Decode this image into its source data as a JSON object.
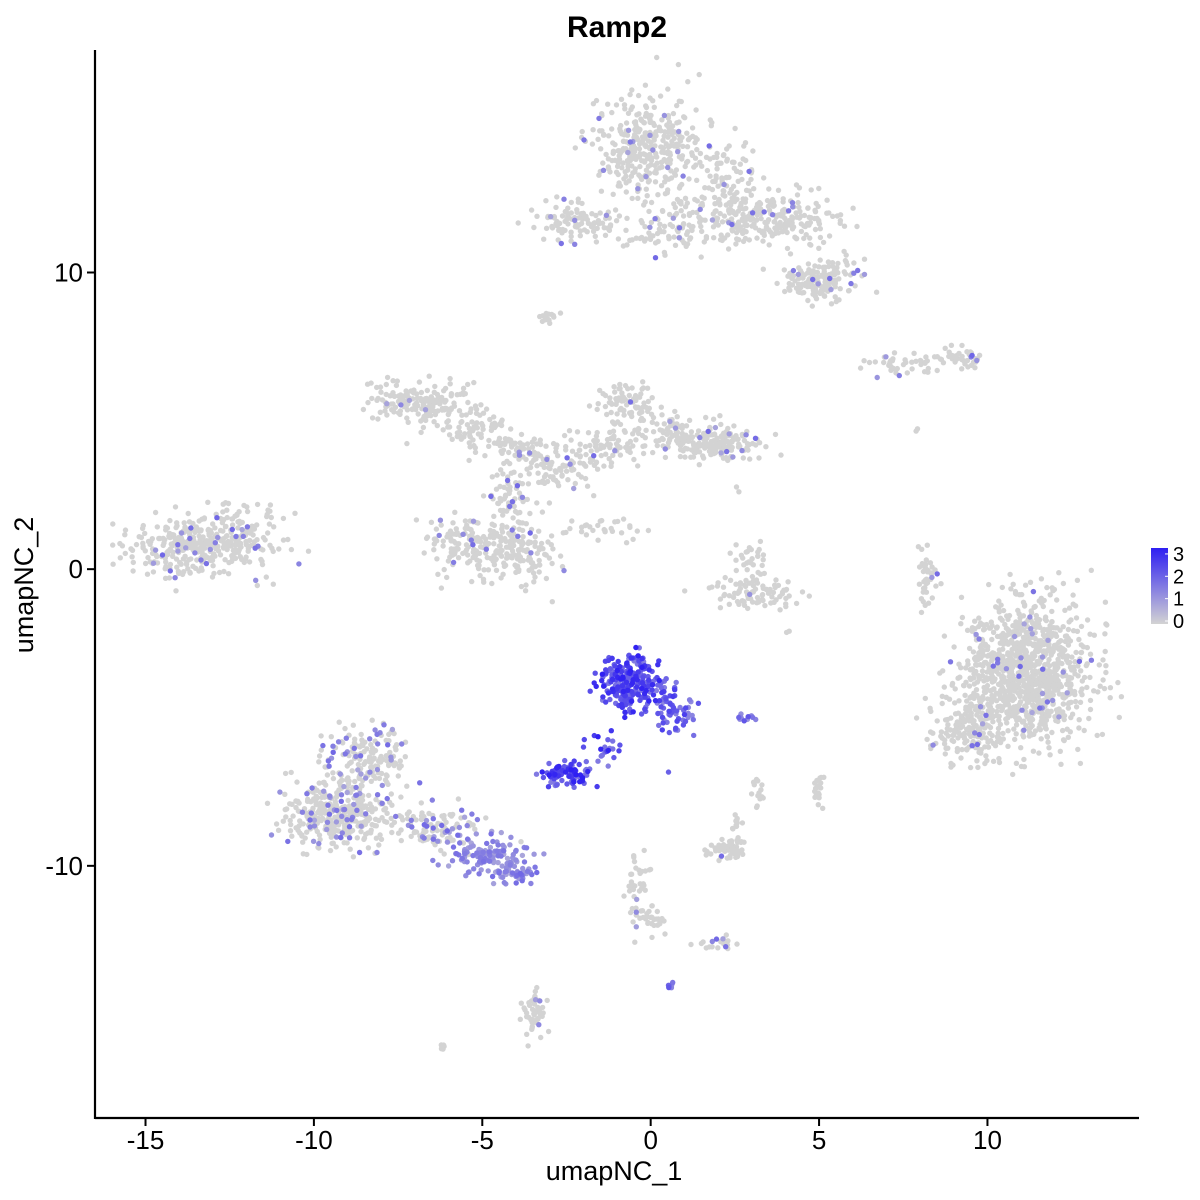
{
  "chart_data": {
    "type": "scatter",
    "title": "Ramp2",
    "xlabel": "umapNC_1",
    "ylabel": "umapNC_2",
    "xlim": [
      -16.5,
      14.5
    ],
    "ylim": [
      -18.5,
      17.5
    ],
    "x_ticks": [
      -15,
      -10,
      -5,
      0,
      5,
      10
    ],
    "x_tick_labels": [
      "-15",
      "-10",
      "-5",
      "0",
      "5",
      "10"
    ],
    "y_ticks": [
      -10,
      0,
      10
    ],
    "y_tick_labels": [
      "-10",
      "0",
      "10"
    ],
    "grid": false,
    "legend": {
      "position": "right",
      "type": "colorbar",
      "values": [
        0,
        1,
        2,
        3
      ],
      "labels": [
        "0",
        "1",
        "2",
        "3"
      ],
      "low_color": "#d3d3d3",
      "high_color": "#2e1ff2"
    },
    "point_color_low": "#d3d3d3",
    "point_color_high": "#2e1ff2",
    "clusters": [
      {
        "cx": -13.5,
        "cy": 0.8,
        "sx": 1.2,
        "sy": 0.6,
        "n": 340,
        "expr": 0.05
      },
      {
        "cx": -12.2,
        "cy": 1.6,
        "sx": 0.8,
        "sy": 0.5,
        "n": 60,
        "expr": 0.05
      },
      {
        "cx": -6.8,
        "cy": 5.6,
        "sx": 0.9,
        "sy": 0.4,
        "n": 180,
        "expr": 0.03
      },
      {
        "cx": -5.2,
        "cy": 4.6,
        "sx": 0.6,
        "sy": 0.4,
        "n": 70,
        "expr": 0.03
      },
      {
        "cx": -4.0,
        "cy": 4.0,
        "sx": 0.6,
        "sy": 0.3,
        "n": 60,
        "expr": 0.05
      },
      {
        "cx": -5.4,
        "cy": 0.8,
        "sx": 0.7,
        "sy": 0.6,
        "n": 140,
        "expr": 0.05
      },
      {
        "cx": -3.8,
        "cy": 0.6,
        "sx": 0.6,
        "sy": 0.6,
        "n": 120,
        "expr": 0.06
      },
      {
        "cx": -4.2,
        "cy": 2.3,
        "sx": 0.4,
        "sy": 0.7,
        "n": 70,
        "expr": 0.04
      },
      {
        "cx": -2.8,
        "cy": 3.3,
        "sx": 0.7,
        "sy": 0.4,
        "n": 70,
        "expr": 0.03
      },
      {
        "cx": -1.5,
        "cy": 4.1,
        "sx": 0.7,
        "sy": 0.4,
        "n": 80,
        "expr": 0.03
      },
      {
        "cx": -0.8,
        "cy": 5.6,
        "sx": 0.5,
        "sy": 0.4,
        "n": 80,
        "expr": 0.03
      },
      {
        "cx": 0.5,
        "cy": 4.6,
        "sx": 0.6,
        "sy": 0.4,
        "n": 60,
        "expr": 0.03
      },
      {
        "cx": 2.0,
        "cy": 4.3,
        "sx": 0.8,
        "sy": 0.4,
        "n": 180,
        "expr": 0.05
      },
      {
        "cx": -1.5,
        "cy": 1.3,
        "sx": 0.8,
        "sy": 0.25,
        "n": 30,
        "expr": 0.0
      },
      {
        "cx": -0.1,
        "cy": 14.2,
        "sx": 0.9,
        "sy": 1.0,
        "n": 360,
        "expr": 0.05
      },
      {
        "cx": 2.3,
        "cy": 13.1,
        "sx": 0.6,
        "sy": 0.8,
        "n": 100,
        "expr": 0.05
      },
      {
        "cx": 3.5,
        "cy": 11.8,
        "sx": 1.2,
        "sy": 0.5,
        "n": 230,
        "expr": 0.05
      },
      {
        "cx": 5.0,
        "cy": 9.8,
        "sx": 0.7,
        "sy": 0.4,
        "n": 170,
        "expr": 0.05
      },
      {
        "cx": 0.9,
        "cy": 11.5,
        "sx": 0.6,
        "sy": 0.5,
        "n": 80,
        "expr": 0.04
      },
      {
        "cx": -2.3,
        "cy": 11.6,
        "sx": 0.8,
        "sy": 0.4,
        "n": 100,
        "expr": 0.03
      },
      {
        "cx": -0.3,
        "cy": 11.1,
        "sx": 0.4,
        "sy": 0.15,
        "n": 15,
        "expr": 0.0
      },
      {
        "cx": -3.1,
        "cy": 8.5,
        "sx": 0.25,
        "sy": 0.1,
        "n": 15,
        "expr": 0.0
      },
      {
        "cx": 7.6,
        "cy": 6.9,
        "sx": 0.6,
        "sy": 0.2,
        "n": 40,
        "expr": 0.05
      },
      {
        "cx": 9.2,
        "cy": 7.1,
        "sx": 0.5,
        "sy": 0.2,
        "n": 45,
        "expr": 0.05
      },
      {
        "cx": 11.2,
        "cy": -3.5,
        "sx": 1.1,
        "sy": 1.4,
        "n": 1050,
        "expr": 0.03
      },
      {
        "cx": 9.4,
        "cy": -5.4,
        "sx": 0.7,
        "sy": 0.7,
        "n": 170,
        "expr": 0.03
      },
      {
        "cx": 8.2,
        "cy": -0.2,
        "sx": 0.15,
        "sy": 0.6,
        "n": 40,
        "expr": 0.05
      },
      {
        "cx": 3.1,
        "cy": -0.8,
        "sx": 0.8,
        "sy": 0.3,
        "n": 90,
        "expr": 0.05
      },
      {
        "cx": 3.0,
        "cy": 0.3,
        "sx": 0.3,
        "sy": 0.4,
        "n": 30,
        "expr": 0.05
      },
      {
        "cx": -9.3,
        "cy": -8.2,
        "sx": 0.9,
        "sy": 0.7,
        "n": 360,
        "expr": 0.15
      },
      {
        "cx": -8.4,
        "cy": -6.4,
        "sx": 0.7,
        "sy": 0.6,
        "n": 160,
        "expr": 0.2
      },
      {
        "cx": -6.4,
        "cy": -8.8,
        "sx": 0.7,
        "sy": 0.5,
        "n": 110,
        "expr": 0.25
      },
      {
        "cx": -4.8,
        "cy": -9.7,
        "sx": 0.7,
        "sy": 0.35,
        "n": 120,
        "expr": 0.55
      },
      {
        "cx": -4.0,
        "cy": -10.3,
        "sx": 0.4,
        "sy": 0.2,
        "n": 40,
        "expr": 0.6
      },
      {
        "cx": -0.6,
        "cy": -3.8,
        "sx": 0.55,
        "sy": 0.55,
        "n": 250,
        "expr": 1.0
      },
      {
        "cx": 0.7,
        "cy": -4.8,
        "sx": 0.35,
        "sy": 0.5,
        "n": 60,
        "expr": 0.85
      },
      {
        "cx": -2.4,
        "cy": -6.9,
        "sx": 0.4,
        "sy": 0.25,
        "n": 90,
        "expr": 1.0
      },
      {
        "cx": -1.3,
        "cy": -5.9,
        "sx": 0.4,
        "sy": 0.35,
        "n": 20,
        "expr": 1.0
      },
      {
        "cx": 2.8,
        "cy": -5.0,
        "sx": 0.2,
        "sy": 0.08,
        "n": 12,
        "expr": 0.7
      },
      {
        "cx": 2.2,
        "cy": -9.5,
        "sx": 0.35,
        "sy": 0.25,
        "n": 60,
        "expr": 0.04
      },
      {
        "cx": 2.5,
        "cy": -8.5,
        "sx": 0.1,
        "sy": 0.15,
        "n": 10,
        "expr": 0.05
      },
      {
        "cx": 3.2,
        "cy": -7.5,
        "sx": 0.1,
        "sy": 0.3,
        "n": 15,
        "expr": 0.0
      },
      {
        "cx": 5.0,
        "cy": -7.4,
        "sx": 0.12,
        "sy": 0.3,
        "n": 20,
        "expr": 0.0
      },
      {
        "cx": -0.4,
        "cy": -10.6,
        "sx": 0.25,
        "sy": 0.7,
        "n": 40,
        "expr": 0.05
      },
      {
        "cx": 0.1,
        "cy": -11.8,
        "sx": 0.2,
        "sy": 0.3,
        "n": 25,
        "expr": 0.0
      },
      {
        "cx": 2.1,
        "cy": -12.6,
        "sx": 0.4,
        "sy": 0.15,
        "n": 20,
        "expr": 0.05
      },
      {
        "cx": 0.6,
        "cy": -14.0,
        "sx": 0.05,
        "sy": 0.08,
        "n": 8,
        "expr": 0.7
      },
      {
        "cx": -3.5,
        "cy": -14.9,
        "sx": 0.2,
        "sy": 0.6,
        "n": 50,
        "expr": 0.05
      },
      {
        "cx": -6.2,
        "cy": -16.1,
        "sx": 0.06,
        "sy": 0.06,
        "n": 6,
        "expr": 0.0
      },
      {
        "cx": 7.9,
        "cy": 4.7,
        "sx": 0.05,
        "sy": 0.05,
        "n": 2,
        "expr": 0.0
      },
      {
        "cx": 4.1,
        "cy": -2.1,
        "sx": 0.05,
        "sy": 0.05,
        "n": 2,
        "expr": 0.0
      },
      {
        "cx": 2.5,
        "cy": 2.7,
        "sx": 0.05,
        "sy": 0.05,
        "n": 2,
        "expr": 0.0
      }
    ]
  }
}
